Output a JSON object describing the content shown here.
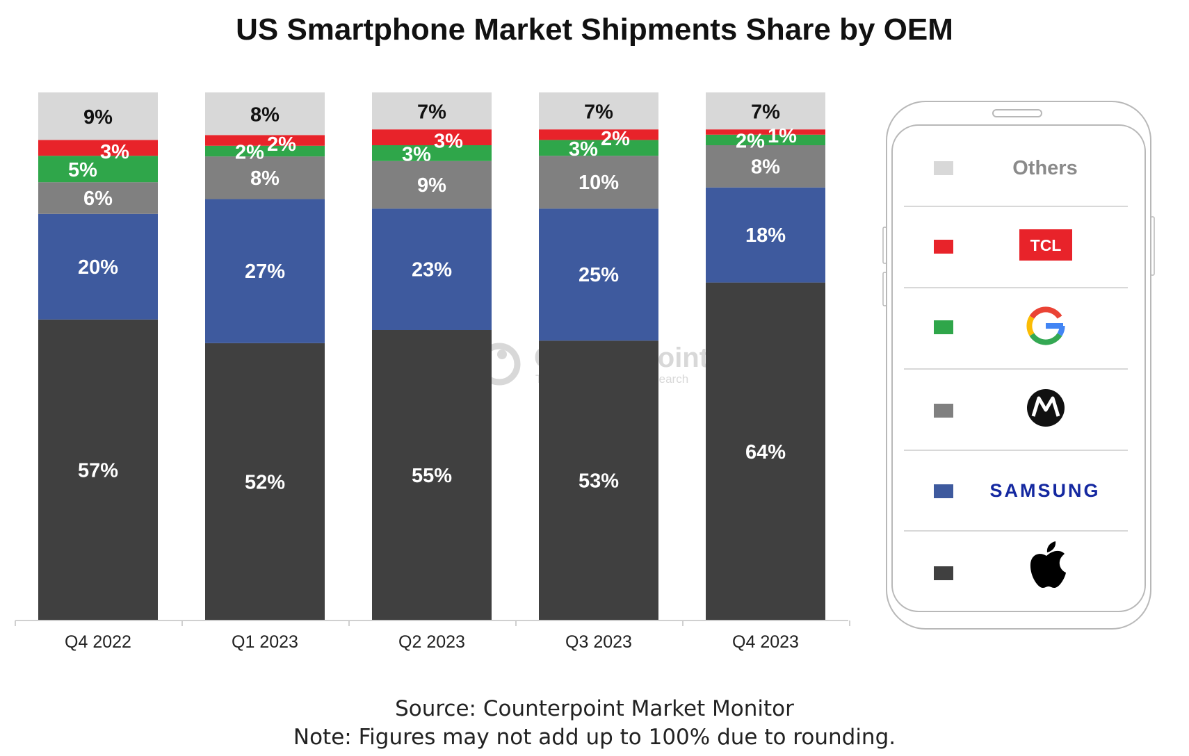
{
  "chart_data": {
    "type": "bar",
    "stacked": true,
    "title": "US Smartphone Market Shipments Share by OEM",
    "categories": [
      "Q4 2022",
      "Q1 2023",
      "Q2 2023",
      "Q3 2023",
      "Q4 2023"
    ],
    "series": [
      {
        "name": "Apple",
        "color": "#404040",
        "label_color": "#ffffff",
        "values": [
          57,
          52,
          55,
          53,
          64
        ]
      },
      {
        "name": "SAMSUNG",
        "color": "#3e5a9e",
        "label_color": "#ffffff",
        "values": [
          20,
          27,
          23,
          25,
          18
        ]
      },
      {
        "name": "Motorola",
        "color": "#808080",
        "label_color": "#ffffff",
        "values": [
          6,
          8,
          9,
          10,
          8
        ]
      },
      {
        "name": "Google",
        "color": "#2fa64a",
        "label_color": "#ffffff",
        "values": [
          5,
          2,
          3,
          3,
          2
        ]
      },
      {
        "name": "TCL",
        "color": "#e8232a",
        "label_color": "#ffffff",
        "values": [
          3,
          2,
          3,
          2,
          1
        ]
      },
      {
        "name": "Others",
        "color": "#d8d8d8",
        "label_color": "#111111",
        "values": [
          9,
          8,
          7,
          7,
          7
        ]
      }
    ],
    "data_labels": [
      [
        "57%",
        "20%",
        "6%",
        "5%",
        "3%",
        "9%"
      ],
      [
        "52%",
        "27%",
        "8%",
        "2%",
        "2%",
        "8%"
      ],
      [
        "55%",
        "23%",
        "9%",
        "3%",
        "3%",
        "7%"
      ],
      [
        "53%",
        "25%",
        "10%",
        "3%",
        "2%",
        "7%"
      ],
      [
        "64%",
        "18%",
        "8%",
        "2%",
        "1%",
        "7%"
      ]
    ],
    "ylim": [
      0,
      100
    ],
    "xlabel": "",
    "ylabel": "",
    "grid": false,
    "legend_placement": "right"
  },
  "legend": {
    "items": [
      {
        "key": "others",
        "label": "Others",
        "color": "#d8d8d8"
      },
      {
        "key": "tcl",
        "label": "TCL",
        "color": "#e8232a"
      },
      {
        "key": "google",
        "label": "G",
        "color": "#2fa64a"
      },
      {
        "key": "motorola",
        "label": "M",
        "color": "#808080"
      },
      {
        "key": "samsung",
        "label": "SAMSUNG",
        "color": "#3e5a9e"
      },
      {
        "key": "apple",
        "label": "",
        "color": "#404040"
      }
    ]
  },
  "watermark": {
    "name": "Counterpoint",
    "tagline": "Technology Market Research"
  },
  "footer": {
    "source": "Source: Counterpoint Market Monitor",
    "note": "Note: Figures may not add up to 100% due to rounding."
  }
}
